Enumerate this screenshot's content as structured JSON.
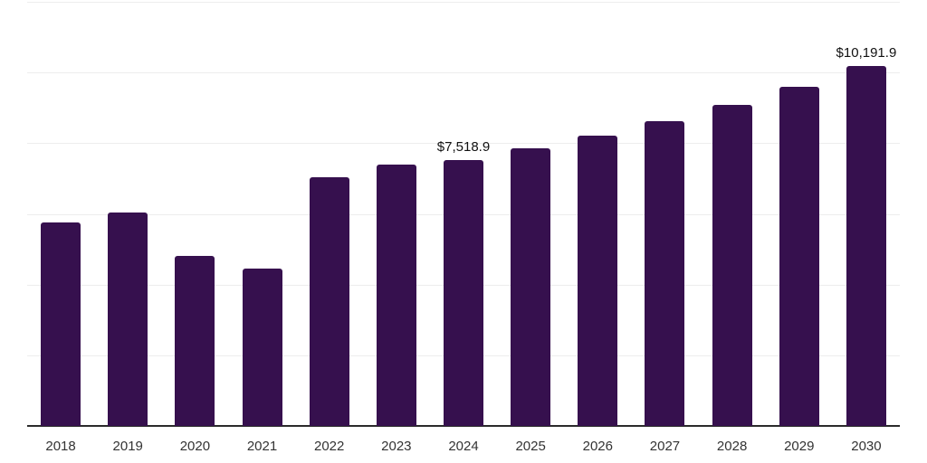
{
  "chart_data": {
    "type": "bar",
    "title": "",
    "xlabel": "",
    "ylabel": "",
    "legend": "none",
    "grid": true,
    "y_axis_tick_labels_visible": false,
    "categories": [
      "2018",
      "2019",
      "2020",
      "2021",
      "2022",
      "2023",
      "2024",
      "2025",
      "2026",
      "2027",
      "2028",
      "2029",
      "2030"
    ],
    "values": [
      5750,
      6040,
      4800,
      4440,
      7040,
      7400,
      7518.9,
      7860,
      8210,
      8620,
      9080,
      9600,
      10191.9
    ],
    "data_labels": [
      "",
      "",
      "",
      "",
      "",
      "",
      "$7,518.9",
      "",
      "",
      "",
      "",
      "",
      "$10,191.9"
    ],
    "ylim": [
      0,
      12000
    ],
    "gridline_step": 2000,
    "colors": {
      "bar": "#36104E",
      "gridline": "#ededed",
      "axis": "#2b2b2b",
      "tick_label": "#333333",
      "data_label": "#111111",
      "background": "#ffffff"
    }
  }
}
